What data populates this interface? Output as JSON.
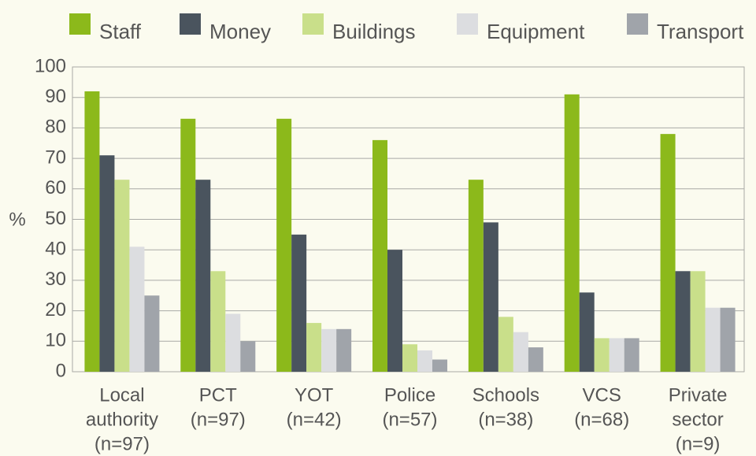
{
  "chart_data": {
    "type": "bar",
    "y_label": "%",
    "categories": [
      [
        "Local",
        "authority",
        "(n=97)"
      ],
      [
        "PCT",
        "(n=97)"
      ],
      [
        "YOT",
        "(n=42)"
      ],
      [
        "Police",
        "(n=57)"
      ],
      [
        "Schools",
        "(n=38)"
      ],
      [
        "VCS",
        "(n=68)"
      ],
      [
        "Private",
        "sector",
        "(n=9)"
      ]
    ],
    "series": [
      {
        "name": "Staff",
        "color": "#8cb91b",
        "values": [
          92,
          83,
          83,
          76,
          63,
          91,
          78
        ]
      },
      {
        "name": "Money",
        "color": "#4a545e",
        "values": [
          71,
          63,
          45,
          40,
          49,
          26,
          33
        ]
      },
      {
        "name": "Buildings",
        "color": "#c9df8a",
        "values": [
          63,
          33,
          16,
          9,
          18,
          11,
          33
        ]
      },
      {
        "name": "Equipment",
        "color": "#dcdde0",
        "values": [
          41,
          19,
          14,
          7,
          13,
          11,
          21
        ]
      },
      {
        "name": "Transport",
        "color": "#a0a4aa",
        "values": [
          25,
          10,
          14,
          4,
          8,
          11,
          21
        ]
      }
    ],
    "ylim": [
      0,
      100
    ],
    "yticks": [
      0,
      10,
      20,
      30,
      40,
      50,
      60,
      70,
      80,
      90,
      100
    ],
    "grid": true
  }
}
